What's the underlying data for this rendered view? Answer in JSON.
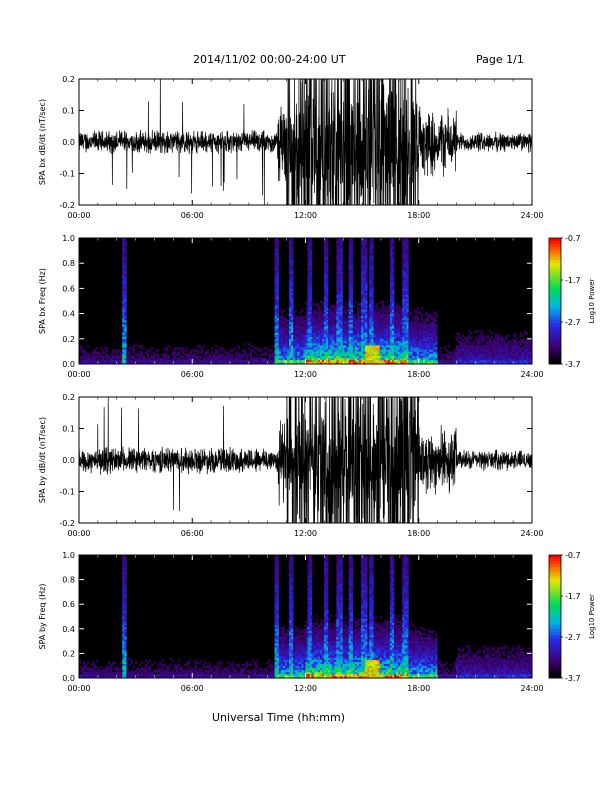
{
  "header": {
    "date_range": "2014/11/02  00:00-24:00 UT",
    "page": "Page 1/1"
  },
  "chart_data": [
    {
      "type": "line",
      "ylabel": "SPA bx dB/dt (nT/sec)",
      "xlabel": "",
      "x_ticks": [
        "00:00",
        "06:00",
        "12:00",
        "18:00",
        "24:00"
      ],
      "y_ticks": [
        "-0.2",
        "-0.1",
        "0.0",
        "0.1",
        "0.2"
      ],
      "xlim_hours": [
        0,
        24
      ],
      "ylim": [
        -0.2,
        0.2
      ],
      "series": [
        {
          "values": [
            {
              "hour_range": [
                0,
                10.5
              ],
              "amplitude": 0.035
            },
            {
              "hour_range": [
                10.5,
                11.5
              ],
              "amplitude": 0.12
            },
            {
              "hour_range": [
                11.5,
                18
              ],
              "amplitude": 0.2
            },
            {
              "hour_range": [
                18,
                20
              ],
              "amplitude": 0.1
            },
            {
              "hour_range": [
                20,
                24
              ],
              "amplitude": 0.03
            }
          ]
        }
      ],
      "line_color": "#000000"
    },
    {
      "type": "heatmap",
      "ylabel": "SPA bx Freq (Hz)",
      "x_ticks": [
        "00:00",
        "06:00",
        "12:00",
        "18:00",
        "24:00"
      ],
      "y_ticks": [
        "0.0",
        "0.2",
        "0.4",
        "0.6",
        "0.8",
        "1.0"
      ],
      "xlim_hours": [
        0,
        24
      ],
      "ylim": [
        0,
        1.0
      ],
      "colorbar": {
        "label": "Log10 Power",
        "ticks": [
          "-0.7",
          "-1.7",
          "-2.7",
          "-3.7"
        ],
        "range": [
          -3.7,
          -0.7
        ]
      },
      "background": "#000000"
    },
    {
      "type": "line",
      "ylabel": "SPA by dB/dt (nT/sec)",
      "xlabel": "",
      "x_ticks": [
        "00:00",
        "06:00",
        "12:00",
        "18:00",
        "24:00"
      ],
      "y_ticks": [
        "-0.2",
        "-0.1",
        "0.0",
        "0.1",
        "0.2"
      ],
      "xlim_hours": [
        0,
        24
      ],
      "ylim": [
        -0.2,
        0.2
      ],
      "series": [
        {
          "values": [
            {
              "hour_range": [
                0,
                10.5
              ],
              "amplitude": 0.04
            },
            {
              "hour_range": [
                10.5,
                11.5
              ],
              "amplitude": 0.13
            },
            {
              "hour_range": [
                11.5,
                18
              ],
              "amplitude": 0.2
            },
            {
              "hour_range": [
                18,
                20
              ],
              "amplitude": 0.1
            },
            {
              "hour_range": [
                20,
                24
              ],
              "amplitude": 0.03
            }
          ]
        }
      ],
      "line_color": "#000000"
    },
    {
      "type": "heatmap",
      "ylabel": "SPA by Freq (Hz)",
      "x_ticks": [
        "00:00",
        "06:00",
        "12:00",
        "18:00",
        "24:00"
      ],
      "y_ticks": [
        "0.0",
        "0.2",
        "0.4",
        "0.6",
        "0.8",
        "1.0"
      ],
      "xlim_hours": [
        0,
        24
      ],
      "ylim": [
        0,
        1.0
      ],
      "colorbar": {
        "label": "Log10 Power",
        "ticks": [
          "-0.7",
          "-1.7",
          "-2.7",
          "-3.7"
        ],
        "range": [
          -3.7,
          -0.7
        ]
      },
      "background": "#000000"
    }
  ],
  "footer": {
    "xlabel": "Universal Time (hh:mm)"
  }
}
